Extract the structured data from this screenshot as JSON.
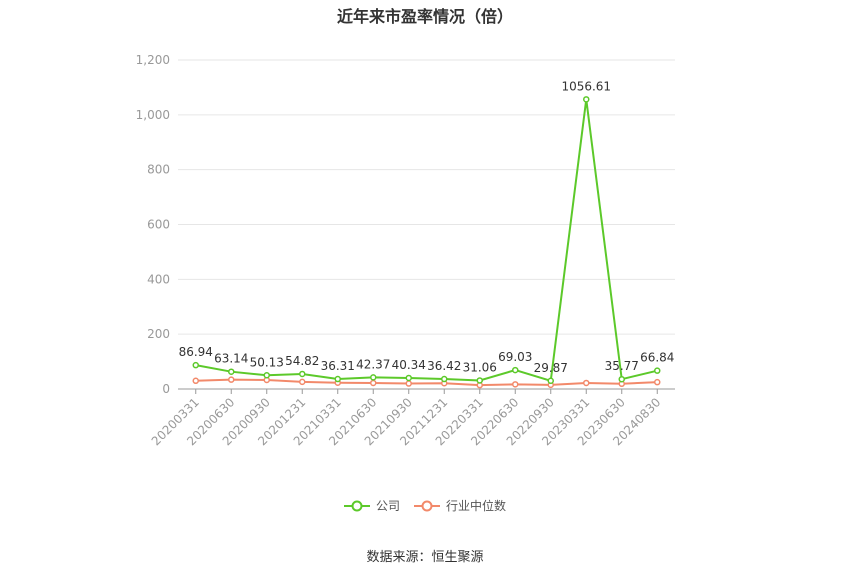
{
  "chart_data": {
    "type": "line",
    "title": "近年来市盈率情况（倍）",
    "categories": [
      "20200331",
      "20200630",
      "20200930",
      "20201231",
      "20210331",
      "20210630",
      "20210930",
      "20211231",
      "20220331",
      "20220630",
      "20220930",
      "20230331",
      "20230630",
      "20240830"
    ],
    "series": [
      {
        "name": "公司",
        "color": "#5cc92a",
        "values": [
          86.94,
          63.14,
          50.13,
          54.82,
          36.31,
          42.37,
          40.34,
          36.42,
          31.06,
          69.03,
          29.87,
          1056.61,
          35.77,
          66.84
        ],
        "labels": [
          "86.94",
          "63.14",
          "50.13",
          "54.82",
          "36.31",
          "42.37",
          "40.34",
          "36.42",
          "31.06",
          "69.03",
          "29.87",
          "1056.61",
          "35.77",
          "66.84"
        ]
      },
      {
        "name": "行业中位数",
        "color": "#f2896a",
        "values": [
          30,
          34,
          33,
          26,
          23,
          22,
          20,
          21,
          14,
          17,
          15,
          22,
          19,
          25
        ]
      }
    ],
    "yticks": [
      "0",
      "200",
      "400",
      "600",
      "800",
      "1,000",
      "1,200"
    ],
    "ylim": [
      0,
      1200
    ],
    "grid": true,
    "legend_position": "bottom"
  },
  "legend": {
    "items": [
      "公司",
      "行业中位数"
    ]
  },
  "source": "数据来源：恒生聚源"
}
